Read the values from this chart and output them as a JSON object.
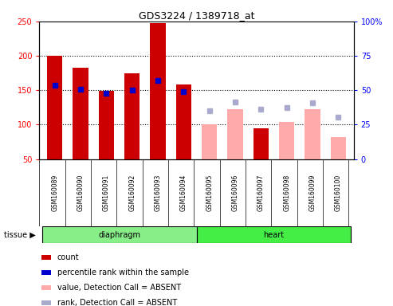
{
  "title": "GDS3224 / 1389718_at",
  "samples": [
    "GSM160089",
    "GSM160090",
    "GSM160091",
    "GSM160092",
    "GSM160093",
    "GSM160094",
    "GSM160095",
    "GSM160096",
    "GSM160097",
    "GSM160098",
    "GSM160099",
    "GSM160100"
  ],
  "tissues": [
    "diaphragm",
    "diaphragm",
    "diaphragm",
    "diaphragm",
    "diaphragm",
    "diaphragm",
    "heart",
    "heart",
    "heart",
    "heart",
    "heart",
    "heart"
  ],
  "count_values": [
    200,
    183,
    149,
    175,
    247,
    158,
    null,
    null,
    95,
    null,
    null,
    null
  ],
  "count_absent_values": [
    null,
    null,
    null,
    null,
    null,
    null,
    100,
    122,
    null,
    104,
    122,
    82
  ],
  "rank_values": [
    157,
    151,
    146,
    150,
    164,
    148,
    null,
    null,
    null,
    null,
    null,
    null
  ],
  "rank_absent_values": [
    null,
    null,
    null,
    null,
    null,
    null,
    120,
    133,
    122,
    125,
    132,
    111
  ],
  "left_ylim": [
    50,
    250
  ],
  "right_ylim": [
    0,
    100
  ],
  "left_yticks": [
    50,
    100,
    150,
    200,
    250
  ],
  "right_yticks": [
    0,
    25,
    50,
    75,
    100
  ],
  "bar_width": 0.6,
  "count_color": "#cc0000",
  "count_absent_color": "#ffaaaa",
  "rank_color": "#0000cc",
  "rank_absent_color": "#aaaacc",
  "diaphragm_color": "#88ee88",
  "heart_color": "#44ee44",
  "tick_area_color": "#cccccc",
  "background_color": "#ffffff",
  "grid_yticks": [
    100,
    150,
    200
  ]
}
